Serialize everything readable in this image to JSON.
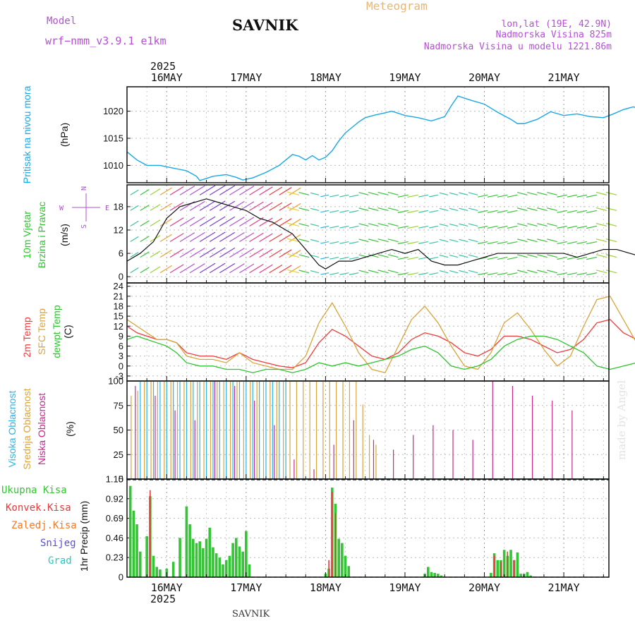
{
  "header": {
    "model_label": "Model",
    "model_name": "wrf−nmm_v3.9.1 e1km",
    "station": "SAVNIK",
    "meteogram_label": "Meteogram",
    "location": "lon,lat (19E, 42.9N)",
    "elevation": "Nadmorska Visina 825m",
    "model_elevation": "Nadmorska Visina u modelu 1221.86m"
  },
  "footer": {
    "station": "SAVNIK"
  },
  "watermark": "made by Angel",
  "colors": {
    "pressure": "#1aa7e6",
    "temp2m": "#ef3b3b",
    "sfc_temp": "#d9a43a",
    "dewpoint": "#2dc42d",
    "cloud_high": "#2bb5e6",
    "cloud_mid": "#d9a43a",
    "cloud_low": "#c8288c",
    "precip_total": "#35c435",
    "precip_conv": "#e83a3a",
    "precip_frozen": "#f07a2a",
    "snow": "#5a4fd8",
    "hail": "#27c9b8",
    "wind_label": "#2dc42d",
    "wind_icon": "#b44fd6"
  },
  "time_axis": {
    "year": "2025",
    "days": [
      "16MAY",
      "17MAY",
      "18MAY",
      "19MAY",
      "20MAY",
      "21MAY"
    ]
  },
  "chart_data": [
    {
      "type": "line",
      "title": "Pritisak na nivou mora",
      "ylabel": "(hPa)",
      "yticks": [
        1010,
        1015,
        1020
      ],
      "ylim": [
        1006.8,
        1024.5
      ],
      "x_unit": "hours since 15MAY 12:00",
      "series": [
        {
          "x": [
            0,
            3,
            6,
            10,
            14,
            18,
            21,
            22,
            26,
            30,
            33,
            35,
            38,
            42,
            46,
            48,
            50,
            52,
            54,
            56,
            58,
            60,
            62,
            64,
            66,
            68,
            70,
            72,
            75,
            78,
            80,
            84,
            88,
            92,
            96,
            98,
            100,
            104,
            108,
            112,
            116,
            118,
            120,
            124,
            128,
            132,
            136,
            140,
            144,
            147,
            150,
            153,
            156,
            160,
            164,
            168,
            172,
            176,
            180,
            182
          ],
          "values": [
            1012.5,
            1011.0,
            1010.0,
            1010.0,
            1009.5,
            1009.0,
            1008.0,
            1007.2,
            1008.0,
            1008.3,
            1007.8,
            1007.3,
            1007.7,
            1008.7,
            1010.0,
            1011.0,
            1012.0,
            1011.7,
            1011.0,
            1011.8,
            1011.0,
            1011.5,
            1012.7,
            1014.5,
            1016.0,
            1017.0,
            1018.0,
            1018.8,
            1019.3,
            1019.7,
            1020.0,
            1019.2,
            1018.8,
            1018.2,
            1019.0,
            1021.0,
            1022.8,
            1022.0,
            1021.3,
            1019.8,
            1018.5,
            1017.7,
            1017.7,
            1018.5,
            1019.9,
            1019.2,
            1019.5,
            1019.0,
            1018.8,
            1019.5,
            1020.3,
            1020.8,
            1020.3,
            1019.5,
            1019.0,
            1018.2,
            1017.8,
            1017.5,
            1018.0,
            1017.8
          ]
        }
      ]
    },
    {
      "type": "line",
      "title": "10m Vjetar",
      "subtitle": "Brzina i Pravac",
      "ylabel": "(m/s)",
      "yticks": [
        0,
        6,
        12,
        18
      ],
      "ylim": [
        -1.6,
        23.6
      ],
      "x_unit": "hours since 15MAY 12:00",
      "legend": {
        "west": "W",
        "east": "E",
        "north": "N",
        "south": "S"
      },
      "series": [
        {
          "name": "speed",
          "x": [
            0,
            4,
            8,
            10,
            12,
            16,
            20,
            24,
            28,
            32,
            36,
            40,
            44,
            48,
            50,
            52,
            54,
            56,
            58,
            60,
            62,
            64,
            68,
            72,
            76,
            80,
            84,
            88,
            92,
            96,
            100,
            104,
            108,
            112,
            116,
            120,
            124,
            128,
            132,
            136,
            140,
            144,
            148,
            152,
            156,
            160,
            164,
            168,
            172,
            176,
            182
          ],
          "values": [
            4,
            6,
            9,
            12,
            15,
            18,
            19,
            20,
            19,
            18,
            17,
            15,
            14,
            12,
            11,
            9,
            7,
            5,
            3,
            2,
            3,
            4,
            4,
            5,
            6,
            7,
            6,
            7,
            4,
            3,
            3,
            4,
            5,
            6,
            6,
            6,
            6,
            6,
            6,
            5,
            6,
            7,
            7,
            6,
            5,
            6,
            7,
            7,
            5,
            3,
            1
          ]
        }
      ]
    },
    {
      "type": "line",
      "title": "2m Temp",
      "ylabel": "(C)",
      "yticks": [
        -3,
        0,
        3,
        6,
        9,
        12,
        15,
        18,
        21,
        24
      ],
      "ylim": [
        -4.5,
        25
      ],
      "legend": [
        "2m Temp",
        "SFC Temp",
        "dewpt Temp"
      ],
      "x_unit": "hours since 15MAY 12:00",
      "series": [
        {
          "name": "2m Temp",
          "x": [
            0,
            3,
            6,
            9,
            12,
            15,
            18,
            22,
            26,
            30,
            34,
            38,
            42,
            46,
            50,
            54,
            58,
            62,
            66,
            70,
            74,
            78,
            82,
            86,
            90,
            94,
            98,
            102,
            106,
            110,
            114,
            118,
            122,
            126,
            130,
            134,
            138,
            142,
            146,
            150,
            154,
            158,
            162,
            166,
            170,
            174,
            178,
            182
          ],
          "values": [
            12,
            10,
            9,
            8,
            8,
            7,
            4,
            3,
            3,
            2,
            4,
            2,
            1,
            0,
            -0.5,
            1,
            7,
            11,
            9,
            6,
            3,
            2,
            4,
            8,
            10,
            9,
            7,
            4,
            3,
            5,
            9,
            9,
            8,
            6,
            4,
            5,
            8,
            13,
            14,
            10,
            8,
            7,
            7,
            9,
            13,
            15,
            17,
            17
          ]
        },
        {
          "name": "SFC Temp",
          "x": [
            0,
            3,
            6,
            9,
            12,
            15,
            18,
            22,
            26,
            30,
            34,
            38,
            42,
            46,
            50,
            54,
            58,
            62,
            66,
            70,
            74,
            78,
            82,
            86,
            90,
            94,
            98,
            102,
            106,
            110,
            114,
            118,
            122,
            126,
            130,
            134,
            138,
            142,
            146,
            150,
            154,
            158,
            162,
            166,
            170,
            174,
            178,
            182
          ],
          "values": [
            14,
            12,
            10,
            8,
            8,
            7,
            3,
            2,
            2,
            1,
            4,
            1,
            0,
            -1,
            -1,
            3,
            13,
            19,
            12,
            4,
            -1,
            -2,
            6,
            14,
            18,
            13,
            6,
            0,
            -1,
            4,
            13,
            16,
            11,
            5,
            0,
            3,
            12,
            20,
            21,
            14,
            7,
            5,
            5,
            10,
            19,
            23,
            24,
            23
          ]
        },
        {
          "name": "dewpt Temp",
          "x": [
            0,
            3,
            6,
            9,
            12,
            15,
            18,
            22,
            26,
            30,
            34,
            38,
            42,
            46,
            50,
            54,
            58,
            62,
            66,
            70,
            74,
            78,
            82,
            86,
            90,
            94,
            98,
            102,
            106,
            110,
            114,
            118,
            122,
            126,
            130,
            134,
            138,
            142,
            146,
            150,
            154,
            158,
            162,
            166,
            170,
            174,
            178,
            182
          ],
          "values": [
            8,
            9,
            8,
            7,
            6,
            4,
            1,
            0,
            0,
            -1,
            -1,
            -2,
            -1,
            -1,
            -2,
            -1,
            1,
            0,
            1,
            0,
            1,
            2,
            3,
            5,
            6,
            4,
            0,
            -1,
            0,
            2,
            6,
            8,
            9,
            9,
            8,
            6,
            4,
            0,
            -1,
            0,
            1,
            0,
            1,
            2,
            4,
            5,
            6,
            6
          ]
        }
      ]
    },
    {
      "type": "bar",
      "title": "Oblacnost",
      "ylabel": "(%)",
      "yticks": [
        0,
        25,
        50,
        75,
        100
      ],
      "ylim": [
        0,
        100
      ],
      "legend": [
        "Visoka Oblacnost",
        "Srednja Oblacnost",
        "Niska Oblacnost"
      ],
      "x_unit": "hours since 15MAY 12:00",
      "series": [
        {
          "name": "Visoka Oblacnost",
          "x": [
            4,
            6,
            8,
            10,
            12,
            14,
            16,
            18,
            20,
            22,
            24,
            26,
            28,
            30,
            32,
            34,
            36,
            38,
            40,
            42,
            44,
            46,
            48,
            50,
            52,
            56,
            60,
            64
          ],
          "values": [
            100,
            100,
            100,
            100,
            100,
            100,
            100,
            100,
            100,
            100,
            100,
            100,
            100,
            100,
            100,
            100,
            100,
            100,
            100,
            100,
            100,
            100,
            100,
            0,
            0,
            0,
            0,
            0
          ]
        },
        {
          "name": "Srednja Oblacnost",
          "x": [
            1,
            3,
            5,
            7,
            9,
            11,
            13,
            15,
            17,
            19,
            21,
            23,
            25,
            27,
            29,
            31,
            33,
            35,
            37,
            39,
            41,
            43,
            45,
            47,
            49,
            51,
            53,
            55,
            57,
            59,
            61,
            63,
            65,
            67,
            69,
            71,
            73,
            75,
            77
          ],
          "values": [
            85,
            90,
            100,
            100,
            100,
            100,
            100,
            100,
            100,
            100,
            100,
            100,
            100,
            100,
            100,
            100,
            100,
            100,
            100,
            100,
            100,
            100,
            100,
            100,
            100,
            100,
            100,
            100,
            100,
            100,
            100,
            100,
            100,
            100,
            100,
            76,
            45,
            35,
            0
          ]
        },
        {
          "name": "Niska Oblacnost",
          "x": [
            2,
            8,
            14,
            20,
            26,
            32,
            38,
            44,
            50,
            56,
            62,
            68,
            74,
            80,
            86,
            92,
            98,
            104,
            110,
            116,
            122,
            128,
            134,
            140
          ],
          "values": [
            95,
            85,
            70,
            60,
            100,
            95,
            80,
            55,
            20,
            10,
            35,
            60,
            40,
            30,
            45,
            55,
            50,
            40,
            100,
            95,
            85,
            80,
            70,
            0
          ]
        }
      ]
    },
    {
      "type": "bar",
      "title": "1hr Precip",
      "ylabel": "1hr Precip (mm)",
      "yticks": [
        0,
        0.23,
        0.46,
        0.69,
        0.92,
        1.15
      ],
      "ylim": [
        0,
        1.15
      ],
      "legend": [
        "Ukupna Kisa",
        "Konvek.Kisa",
        "Zaledj.Kisa",
        "Snijeg",
        "Grad"
      ],
      "x_unit": "hours since 15MAY 12:00",
      "series": [
        {
          "name": "Ukupna Kisa",
          "x": [
            1,
            2,
            3,
            4,
            6,
            7,
            8,
            9,
            10,
            12,
            14,
            16,
            18,
            19,
            20,
            21,
            22,
            23,
            24,
            25,
            26,
            27,
            28,
            29,
            30,
            31,
            32,
            33,
            34,
            35,
            36,
            37,
            60,
            61,
            62,
            63,
            64,
            65,
            66,
            67,
            90,
            91,
            92,
            93,
            94,
            95,
            110,
            111,
            112,
            113,
            114,
            115,
            116,
            117,
            118,
            119,
            120,
            121,
            122
          ],
          "values": [
            1.07,
            0.78,
            0.62,
            0.3,
            0.48,
            0.95,
            0.25,
            0.12,
            0.09,
            0.1,
            0.18,
            0.46,
            0.83,
            0.62,
            0.45,
            0.4,
            0.42,
            0.34,
            0.45,
            0.58,
            0.35,
            0.28,
            0.23,
            0.15,
            0.2,
            0.25,
            0.4,
            0.46,
            0.36,
            0.3,
            0.54,
            0.15,
            0.04,
            0.1,
            1.05,
            0.86,
            0.45,
            0.4,
            0.25,
            0.13,
            0.04,
            0.12,
            0.06,
            0.05,
            0.04,
            0.02,
            0.05,
            0.28,
            0.2,
            0.2,
            0.32,
            0.25,
            0.32,
            0.2,
            0.29,
            0.04,
            0.04,
            0.06,
            0.02
          ]
        },
        {
          "name": "Konvek.Kisa",
          "x": [
            7,
            61,
            62,
            63,
            111,
            113,
            115,
            117
          ],
          "values": [
            1.02,
            0.2,
            1.0,
            0.75,
            0.25,
            0.18,
            0.3,
            0.2
          ]
        }
      ]
    }
  ]
}
